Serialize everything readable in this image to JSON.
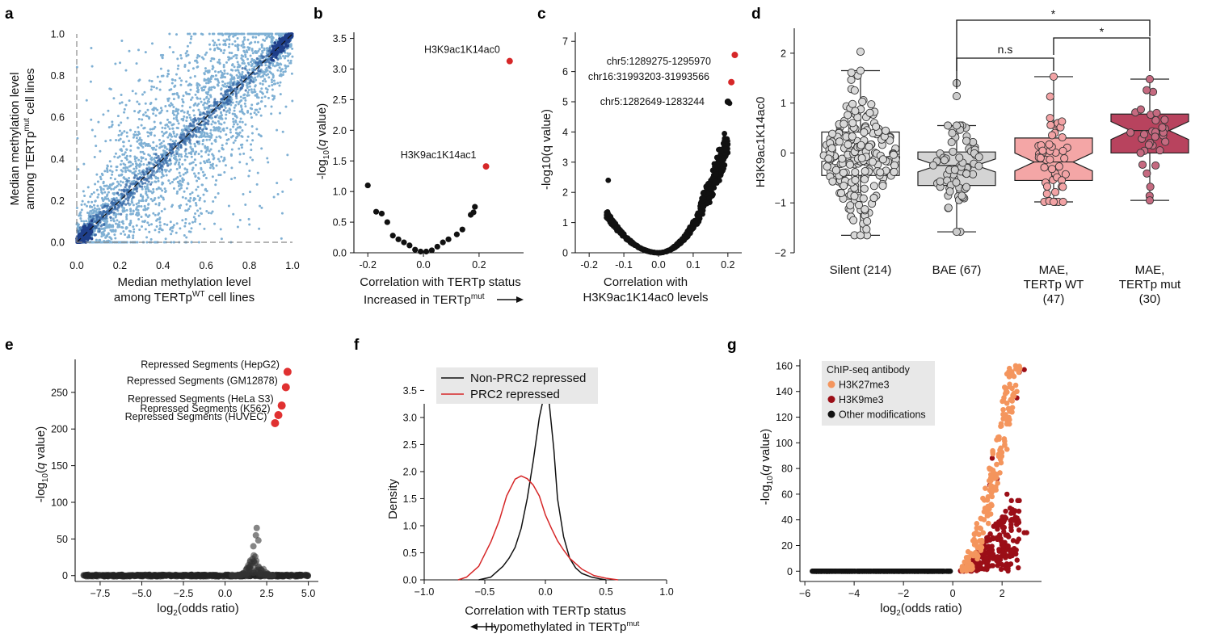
{
  "chart_data": [
    {
      "id": "a",
      "letter": "a",
      "type": "scatter",
      "xlabel_line1": "Median methylation level",
      "xlabel_line2": "among TERTp",
      "xlabel_sup": "WT",
      "xlabel_tail": " cell lines",
      "ylabel_line1": "Median methylation level",
      "ylabel_line2": "among TERTp",
      "ylabel_sup": "mut",
      "ylabel_tail": " cell lines",
      "xlim": [
        0,
        1
      ],
      "ylim": [
        0,
        1
      ],
      "xticks": [
        0,
        0.2,
        0.4,
        0.6,
        0.8,
        1
      ],
      "xtick_labels": [
        "0.0",
        "0.2",
        "0.4",
        "0.6",
        "0.8",
        "1.0"
      ],
      "yticks": [
        0,
        0.2,
        0.4,
        0.6,
        0.8,
        1
      ],
      "ytick_labels": [
        "0.0",
        "0.2",
        "0.4",
        "0.6",
        "0.8",
        "1.0"
      ],
      "reference_lines": [
        "diagonal y=x (dashed)",
        "x=0 (dashed)",
        "y=0 (dashed)"
      ],
      "point_color": "#7fb0d4",
      "dense_color": "#1f3f8a"
    },
    {
      "id": "b",
      "letter": "b",
      "type": "scatter",
      "xlabel": "Correlation with TERTp status",
      "xlabel2_text": "Increased in TERTp",
      "xlabel2_sup": "mut",
      "ylabel": "-log10(q value)",
      "xlim": [
        -0.25,
        0.36
      ],
      "ylim": [
        0,
        3.6
      ],
      "xticks": [
        -0.2,
        0,
        0.2
      ],
      "xtick_labels": [
        "-0.2",
        "0.0",
        "0.2"
      ],
      "yticks": [
        0,
        0.5,
        1,
        1.5,
        2,
        2.5,
        3,
        3.5
      ],
      "ytick_labels": [
        "0.0",
        "0.5",
        "1.0",
        "1.5",
        "2.0",
        "2.5",
        "3.0",
        "3.5"
      ],
      "points": [
        [
          -0.2,
          1.1
        ],
        [
          -0.17,
          0.67
        ],
        [
          -0.15,
          0.64
        ],
        [
          -0.13,
          0.5
        ],
        [
          -0.11,
          0.28
        ],
        [
          -0.09,
          0.22
        ],
        [
          -0.07,
          0.17
        ],
        [
          -0.05,
          0.12
        ],
        [
          -0.03,
          0.05
        ],
        [
          -0.01,
          0.02
        ],
        [
          0.01,
          0.02
        ],
        [
          0.03,
          0.04
        ],
        [
          0.05,
          0.1
        ],
        [
          0.07,
          0.17
        ],
        [
          0.09,
          0.22
        ],
        [
          0.12,
          0.3
        ],
        [
          0.14,
          0.38
        ],
        [
          0.17,
          0.62
        ],
        [
          0.18,
          0.66
        ],
        [
          0.185,
          0.75
        ]
      ],
      "highlight": [
        {
          "x": 0.31,
          "y": 3.13,
          "label": "H3K9ac1K14ac0"
        },
        {
          "x": 0.225,
          "y": 1.41,
          "label": "H3K9ac1K14ac1"
        }
      ],
      "highlight_color": "#d62728"
    },
    {
      "id": "c",
      "letter": "c",
      "type": "scatter",
      "xlabel_line1": "Correlation with",
      "xlabel_line2": "H3K9ac1K14ac0 levels",
      "ylabel": "-log10(q value)",
      "xlim": [
        -0.24,
        0.24
      ],
      "ylim": [
        0,
        7.3
      ],
      "xticks": [
        -0.2,
        -0.1,
        0,
        0.1,
        0.2
      ],
      "xtick_labels": [
        "-0.2",
        "-0.1",
        "0.0",
        "0.1",
        "0.2"
      ],
      "yticks": [
        0,
        1,
        2,
        3,
        4,
        5,
        6,
        7
      ],
      "ytick_labels": [
        "0",
        "1",
        "2",
        "3",
        "4",
        "5",
        "6",
        "7"
      ],
      "highlight": [
        {
          "x": 0.22,
          "y": 6.55,
          "label": "chr5:1289275-1295970"
        },
        {
          "x": 0.21,
          "y": 5.65,
          "label": "chr16:31993203-31993566"
        },
        {
          "x": 0.2,
          "y": 5.0,
          "label": "chr5:1282649-1283244"
        }
      ],
      "highlight_color": "#d62728"
    },
    {
      "id": "d",
      "letter": "d",
      "type": "box",
      "ylabel": "H3K9ac1K14ac0",
      "ylim": [
        -2,
        2.5
      ],
      "yticks": [
        -2,
        -1,
        0,
        1,
        2
      ],
      "ytick_labels": [
        "−2",
        "−1",
        "0",
        "1",
        "2"
      ],
      "groups": [
        {
          "label1": "Silent (214)",
          "label2": "",
          "label3": "",
          "color": "#ffffff",
          "dot": "#d9d9d9",
          "q1": -0.45,
          "median": -0.1,
          "q3": 0.42,
          "whisk_lo": -1.65,
          "whisk_hi": 1.65,
          "notch": 0.07,
          "n": 214,
          "outlier_hi": 2.03
        },
        {
          "label1": "BAE (67)",
          "label2": "",
          "label3": "",
          "color": "#d4d4d4",
          "dot": "#cccccc",
          "q1": -0.65,
          "median": -0.25,
          "q3": 0.02,
          "whisk_lo": -1.58,
          "whisk_hi": 0.55,
          "notch": 0.13,
          "n": 67,
          "outlier_hi": 1.4,
          "outlier_hi2": 1.14
        },
        {
          "label1": "MAE,",
          "label2": "TERTp WT",
          "label3": "(47)",
          "color": "#f4a6a6",
          "dot": "#f2a3a5",
          "q1": -0.55,
          "median": -0.18,
          "q3": 0.3,
          "whisk_lo": -0.98,
          "whisk_hi": 1.53,
          "notch": 0.18,
          "n": 47
        },
        {
          "label1": "MAE,",
          "label2": "TERTp mut",
          "label3": "(30)",
          "color": "#b8435e",
          "dot": "#c56a80",
          "q1": 0.0,
          "median": 0.45,
          "q3": 0.78,
          "whisk_lo": -0.95,
          "whisk_hi": 1.48,
          "notch": 0.18,
          "n": 30
        }
      ],
      "brackets": [
        {
          "from": 1,
          "to": 2,
          "label": "n.s"
        },
        {
          "from": 2,
          "to": 3,
          "label": "*"
        },
        {
          "from": 1,
          "to": 3,
          "label": "*"
        }
      ]
    },
    {
      "id": "e",
      "letter": "e",
      "type": "scatter",
      "xlabel": "log2(odds ratio)",
      "ylabel": "-log10(q value)",
      "xlim": [
        -9,
        5.6
      ],
      "ylim": [
        -8,
        295
      ],
      "xticks": [
        -7.5,
        -5,
        -2.5,
        0,
        2.5,
        5
      ],
      "xtick_labels": [
        "−7.5",
        "−5.0",
        "−2.5",
        "0.0",
        "2.5",
        "5.0"
      ],
      "yticks": [
        0,
        50,
        100,
        150,
        200,
        250
      ],
      "ytick_labels": [
        "0",
        "50",
        "100",
        "150",
        "200",
        "250"
      ],
      "highlight": [
        {
          "x": 3.75,
          "y": 278,
          "label": "Repressed Segments (HepG2)"
        },
        {
          "x": 3.65,
          "y": 257,
          "label": "Repressed Segments (GM12878)"
        },
        {
          "x": 3.4,
          "y": 232,
          "label": "Repressed Segments (HeLa S3)"
        },
        {
          "x": 3.2,
          "y": 219,
          "label": "Repressed Segments (K562)"
        },
        {
          "x": 3.0,
          "y": 208,
          "label": "Repressed Segments (HUVEC)"
        }
      ],
      "highlight_color": "#e03131"
    },
    {
      "id": "f",
      "letter": "f",
      "type": "line",
      "xlabel": "Correlation with TERTp status",
      "xlabel2_text": "Hypomethylated in TERTp",
      "xlabel2_sup": "mut",
      "ylabel": "Density",
      "xlim": [
        -1,
        1
      ],
      "ylim": [
        0,
        3.7
      ],
      "xticks": [
        -1,
        -0.5,
        0,
        0.5,
        1
      ],
      "xtick_labels": [
        "−1.0",
        "−0.5",
        "0.0",
        "0.5",
        "1.0"
      ],
      "yticks": [
        0,
        0.5,
        1,
        1.5,
        2,
        2.5,
        3,
        3.5
      ],
      "ytick_labels": [
        "0.0",
        "0.5",
        "1.0",
        "1.5",
        "2.0",
        "2.5",
        "3.0",
        "3.5"
      ],
      "series": [
        {
          "name": "Non-PRC2 repressed",
          "color": "#111111",
          "x": [
            -0.55,
            -0.45,
            -0.35,
            -0.3,
            -0.25,
            -0.2,
            -0.15,
            -0.1,
            -0.05,
            0,
            0.03,
            0.07,
            0.1,
            0.15,
            0.2,
            0.25,
            0.3,
            0.38,
            0.45,
            0.5
          ],
          "y": [
            0,
            0.05,
            0.25,
            0.4,
            0.6,
            0.95,
            1.5,
            2.2,
            3.0,
            3.52,
            3.3,
            2.4,
            1.5,
            0.8,
            0.4,
            0.22,
            0.12,
            0.05,
            0.02,
            0
          ]
        },
        {
          "name": "PRC2 repressed",
          "color": "#d62728",
          "x": [
            -0.72,
            -0.65,
            -0.55,
            -0.45,
            -0.38,
            -0.32,
            -0.25,
            -0.2,
            -0.15,
            -0.1,
            -0.05,
            0,
            0.05,
            0.1,
            0.15,
            0.2,
            0.3,
            0.4,
            0.5,
            0.6
          ],
          "y": [
            0,
            0.05,
            0.25,
            0.7,
            1.1,
            1.55,
            1.86,
            1.92,
            1.87,
            1.75,
            1.55,
            1.2,
            0.95,
            0.72,
            0.55,
            0.4,
            0.2,
            0.08,
            0.03,
            0
          ]
        }
      ],
      "legend": [
        "Non-PRC2 repressed",
        "PRC2 repressed"
      ]
    },
    {
      "id": "g",
      "letter": "g",
      "type": "scatter",
      "xlabel": "log2(odds ratio)",
      "ylabel": "-log10(q value)",
      "xlim": [
        -6.2,
        3.6
      ],
      "ylim": [
        -8,
        165
      ],
      "xticks": [
        -6,
        -4,
        -2,
        0,
        2
      ],
      "xtick_labels": [
        "−6",
        "−4",
        "−2",
        "0",
        "2"
      ],
      "yticks": [
        0,
        20,
        40,
        60,
        80,
        100,
        120,
        140,
        160
      ],
      "ytick_labels": [
        "0",
        "20",
        "40",
        "60",
        "80",
        "100",
        "120",
        "140",
        "160"
      ],
      "legend_title": "ChIP-seq antibody",
      "legend": [
        {
          "label": "H3K27me3",
          "color": "#f4955d"
        },
        {
          "label": "H3K9me3",
          "color": "#9b0e17"
        },
        {
          "label": "Other modifications",
          "color": "#111111"
        }
      ]
    }
  ]
}
